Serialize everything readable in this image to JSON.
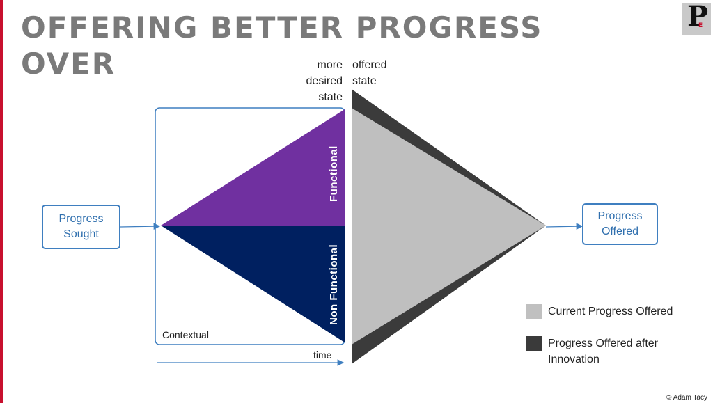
{
  "title": "OFFERING BETTER PROGRESS OVER",
  "logo": {
    "letter": "P",
    "sub": "E"
  },
  "labels": {
    "more_desired_state": [
      "more",
      "desired",
      "state"
    ],
    "offered_state": [
      "offered",
      "state"
    ],
    "functional": "Functional",
    "non_functional": "Non Functional",
    "contextual": "Contextual",
    "time": "time"
  },
  "boxes": {
    "progress_sought": [
      "Progress",
      "Sought"
    ],
    "progress_offered": [
      "Progress",
      "Offered"
    ]
  },
  "legend": {
    "current": {
      "label": "Current Progress Offered",
      "color": "#c0c0c0"
    },
    "after": {
      "label": "Progress Offered after Innovation",
      "color": "#3a3a3a"
    }
  },
  "colors": {
    "functional": "#7030a0",
    "non_functional": "#002060",
    "current_offered": "#bfbfbf",
    "after_innovation": "#3b3b3b",
    "outline": "#3f7fc0",
    "accent_red": "#c8102e"
  },
  "copyright": "© Adam Tacy"
}
